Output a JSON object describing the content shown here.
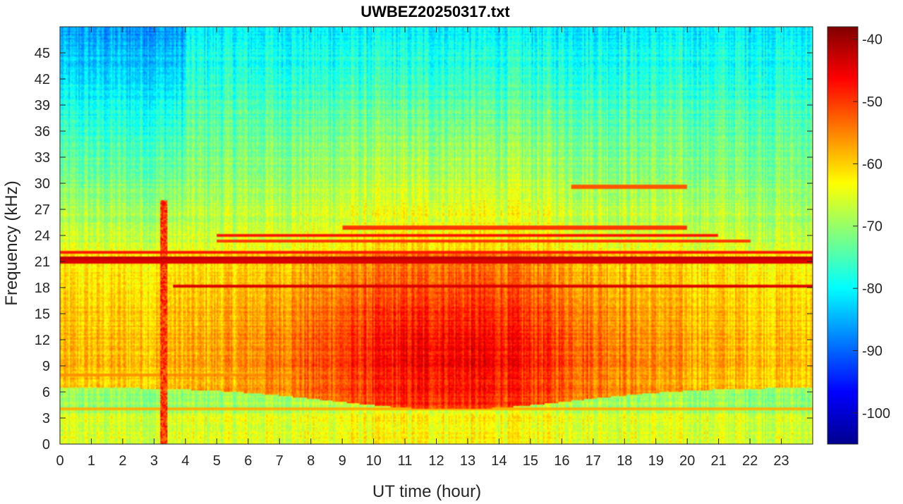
{
  "chart_data": {
    "type": "heatmap",
    "title": "UWBEZ20250317.txt",
    "xlabel": "UT time (hour)",
    "ylabel": "Frequency (kHz)",
    "xlim": [
      0,
      24
    ],
    "ylim": [
      0,
      48
    ],
    "x_ticks": [
      0,
      1,
      2,
      3,
      4,
      5,
      6,
      7,
      8,
      9,
      10,
      11,
      12,
      13,
      14,
      15,
      16,
      17,
      18,
      19,
      20,
      21,
      22,
      23
    ],
    "y_ticks": [
      0,
      3,
      6,
      9,
      12,
      15,
      18,
      21,
      24,
      27,
      30,
      33,
      36,
      39,
      42,
      45
    ],
    "colorbar": {
      "colormap": "jet",
      "range": [
        -105,
        -38
      ],
      "ticks": [
        -40,
        -50,
        -60,
        -70,
        -80,
        -90,
        -100
      ]
    },
    "features": {
      "narrowband_lines_khz": [
        {
          "freq": 18.1,
          "level": -44,
          "from": 3.6,
          "to": 24
        },
        {
          "freq": 21.0,
          "level": -44,
          "from": 0,
          "to": 24
        },
        {
          "freq": 21.4,
          "level": -42,
          "from": 0,
          "to": 24
        },
        {
          "freq": 22.1,
          "level": -48,
          "from": 0,
          "to": 24
        },
        {
          "freq": 23.4,
          "level": -50,
          "from": 5,
          "to": 22
        },
        {
          "freq": 24.0,
          "level": -48,
          "from": 5,
          "to": 21
        },
        {
          "freq": 24.9,
          "level": -50,
          "from": 9,
          "to": 20
        },
        {
          "freq": 29.6,
          "level": -52,
          "from": 16.3,
          "to": 20
        },
        {
          "freq": 4.0,
          "level": -58,
          "from": 0,
          "to": 24
        },
        {
          "freq": 8.0,
          "level": -56,
          "from": 0,
          "to": 9
        }
      ],
      "broadband_max": {
        "time_hour": 12.5,
        "freq_khz": 10,
        "level": -46
      },
      "burst_time_hour": 3.3
    }
  }
}
